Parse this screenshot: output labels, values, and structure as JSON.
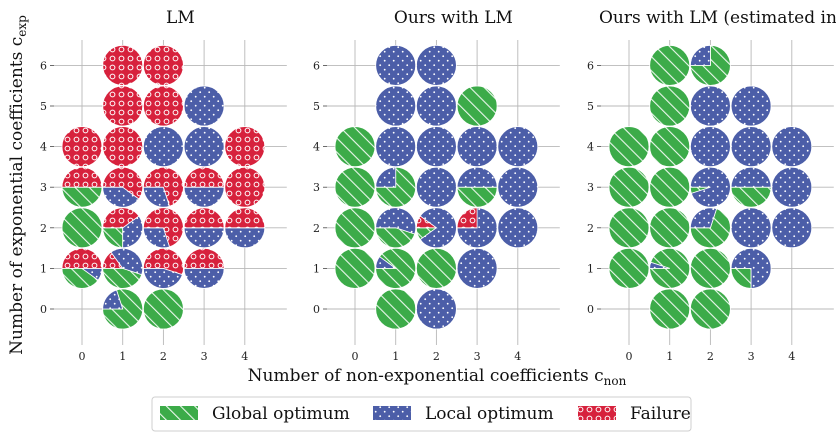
{
  "colors": {
    "global": "#3cab49",
    "local": "#4c5ea8",
    "failure": "#d7213c",
    "grid": "#b8b8b8"
  },
  "axes": {
    "xlabel": "Number of non-exponential coefficients c",
    "xlabel_sub": "non",
    "ylabel": "Number of exponential coefficients c",
    "ylabel_sub": "exp"
  },
  "legend": [
    {
      "key": "global",
      "label": "Global optimum"
    },
    {
      "key": "local",
      "label": "Local optimum"
    },
    {
      "key": "failure",
      "label": "Failure"
    }
  ],
  "chart_data": [
    {
      "type": "pie-grid",
      "title": "LM",
      "x_ticks": [
        "0",
        "1",
        "2",
        "3",
        "4"
      ],
      "y_ticks": [
        "0",
        "1",
        "2",
        "3",
        "4",
        "5",
        "6"
      ],
      "cells": [
        {
          "x": 1,
          "y": 0,
          "global": 0.8,
          "local": 0.2,
          "failure": 0.0
        },
        {
          "x": 2,
          "y": 0,
          "global": 1.0,
          "local": 0.0,
          "failure": 0.0
        },
        {
          "x": 0,
          "y": 1,
          "global": 0.4,
          "local": 0.1,
          "failure": 0.5
        },
        {
          "x": 1,
          "y": 1,
          "global": 0.45,
          "local": 0.4,
          "failure": 0.15
        },
        {
          "x": 2,
          "y": 1,
          "global": 0.0,
          "local": 0.45,
          "failure": 0.55
        },
        {
          "x": 3,
          "y": 1,
          "global": 0.0,
          "local": 0.5,
          "failure": 0.5
        },
        {
          "x": 0,
          "y": 2,
          "global": 1.0,
          "local": 0.0,
          "failure": 0.0
        },
        {
          "x": 1,
          "y": 2,
          "global": 0.25,
          "local": 0.35,
          "failure": 0.4
        },
        {
          "x": 2,
          "y": 2,
          "global": 0.0,
          "local": 0.3,
          "failure": 0.7
        },
        {
          "x": 3,
          "y": 2,
          "global": 0.0,
          "local": 0.5,
          "failure": 0.5
        },
        {
          "x": 4,
          "y": 2,
          "global": 0.0,
          "local": 0.5,
          "failure": 0.5
        },
        {
          "x": 0,
          "y": 3,
          "global": 0.5,
          "local": 0.0,
          "failure": 0.5
        },
        {
          "x": 1,
          "y": 3,
          "global": 0.0,
          "local": 0.4,
          "failure": 0.6
        },
        {
          "x": 2,
          "y": 3,
          "global": 0.0,
          "local": 0.3,
          "failure": 0.7
        },
        {
          "x": 3,
          "y": 3,
          "global": 0.0,
          "local": 0.5,
          "failure": 0.5
        },
        {
          "x": 4,
          "y": 3,
          "global": 0.0,
          "local": 0.0,
          "failure": 1.0
        },
        {
          "x": 0,
          "y": 4,
          "global": 0.0,
          "local": 0.0,
          "failure": 1.0
        },
        {
          "x": 1,
          "y": 4,
          "global": 0.0,
          "local": 0.0,
          "failure": 1.0
        },
        {
          "x": 2,
          "y": 4,
          "global": 0.0,
          "local": 1.0,
          "failure": 0.0
        },
        {
          "x": 3,
          "y": 4,
          "global": 0.0,
          "local": 1.0,
          "failure": 0.0
        },
        {
          "x": 4,
          "y": 4,
          "global": 0.0,
          "local": 0.0,
          "failure": 1.0
        },
        {
          "x": 1,
          "y": 5,
          "global": 0.0,
          "local": 0.0,
          "failure": 1.0
        },
        {
          "x": 2,
          "y": 5,
          "global": 0.0,
          "local": 0.0,
          "failure": 1.0
        },
        {
          "x": 3,
          "y": 5,
          "global": 0.0,
          "local": 1.0,
          "failure": 0.0
        },
        {
          "x": 1,
          "y": 6,
          "global": 0.0,
          "local": 0.0,
          "failure": 1.0
        },
        {
          "x": 2,
          "y": 6,
          "global": 0.0,
          "local": 0.0,
          "failure": 1.0
        }
      ]
    },
    {
      "type": "pie-grid",
      "title": "Ours with LM",
      "x_ticks": [
        "0",
        "1",
        "2",
        "3",
        "4"
      ],
      "y_ticks": [
        "0",
        "1",
        "2",
        "3",
        "4",
        "5",
        "6"
      ],
      "cells": [
        {
          "x": 1,
          "y": 0,
          "global": 1.0,
          "local": 0.0,
          "failure": 0.0
        },
        {
          "x": 2,
          "y": 0,
          "global": 0.0,
          "local": 1.0,
          "failure": 0.0
        },
        {
          "x": 0,
          "y": 1,
          "global": 1.0,
          "local": 0.0,
          "failure": 0.0
        },
        {
          "x": 1,
          "y": 1,
          "global": 0.9,
          "local": 0.1,
          "failure": 0.0
        },
        {
          "x": 2,
          "y": 1,
          "global": 1.0,
          "local": 0.0,
          "failure": 0.0
        },
        {
          "x": 3,
          "y": 1,
          "global": 0.0,
          "local": 1.0,
          "failure": 0.0
        },
        {
          "x": 0,
          "y": 2,
          "global": 1.0,
          "local": 0.0,
          "failure": 0.0
        },
        {
          "x": 1,
          "y": 2,
          "global": 0.45,
          "local": 0.55,
          "failure": 0.0
        },
        {
          "x": 2,
          "y": 2,
          "global": 0.1,
          "local": 0.8,
          "failure": 0.1
        },
        {
          "x": 3,
          "y": 2,
          "global": 0.0,
          "local": 0.75,
          "failure": 0.25
        },
        {
          "x": 4,
          "y": 2,
          "global": 0.0,
          "local": 1.0,
          "failure": 0.0
        },
        {
          "x": 0,
          "y": 3,
          "global": 1.0,
          "local": 0.0,
          "failure": 0.0
        },
        {
          "x": 1,
          "y": 3,
          "global": 0.75,
          "local": 0.25,
          "failure": 0.0
        },
        {
          "x": 2,
          "y": 3,
          "global": 0.0,
          "local": 1.0,
          "failure": 0.0
        },
        {
          "x": 3,
          "y": 3,
          "global": 0.5,
          "local": 0.5,
          "failure": 0.0
        },
        {
          "x": 4,
          "y": 3,
          "global": 0.0,
          "local": 1.0,
          "failure": 0.0
        },
        {
          "x": 0,
          "y": 4,
          "global": 1.0,
          "local": 0.0,
          "failure": 0.0
        },
        {
          "x": 1,
          "y": 4,
          "global": 0.0,
          "local": 1.0,
          "failure": 0.0
        },
        {
          "x": 2,
          "y": 4,
          "global": 0.0,
          "local": 1.0,
          "failure": 0.0
        },
        {
          "x": 3,
          "y": 4,
          "global": 0.0,
          "local": 1.0,
          "failure": 0.0
        },
        {
          "x": 4,
          "y": 4,
          "global": 0.0,
          "local": 1.0,
          "failure": 0.0
        },
        {
          "x": 1,
          "y": 5,
          "global": 0.0,
          "local": 1.0,
          "failure": 0.0
        },
        {
          "x": 2,
          "y": 5,
          "global": 0.0,
          "local": 1.0,
          "failure": 0.0
        },
        {
          "x": 3,
          "y": 5,
          "global": 1.0,
          "local": 0.0,
          "failure": 0.0
        },
        {
          "x": 1,
          "y": 6,
          "global": 0.0,
          "local": 1.0,
          "failure": 0.0
        },
        {
          "x": 2,
          "y": 6,
          "global": 0.0,
          "local": 1.0,
          "failure": 0.0
        }
      ]
    },
    {
      "type": "pie-grid",
      "title": "Ours with LM (estimated init)",
      "x_ticks": [
        "0",
        "1",
        "2",
        "3",
        "4"
      ],
      "y_ticks": [
        "0",
        "1",
        "2",
        "3",
        "4",
        "5",
        "6"
      ],
      "cells": [
        {
          "x": 1,
          "y": 0,
          "global": 1.0,
          "local": 0.0,
          "failure": 0.0
        },
        {
          "x": 2,
          "y": 0,
          "global": 1.0,
          "local": 0.0,
          "failure": 0.0
        },
        {
          "x": 0,
          "y": 1,
          "global": 1.0,
          "local": 0.0,
          "failure": 0.0
        },
        {
          "x": 1,
          "y": 1,
          "global": 0.95,
          "local": 0.05,
          "failure": 0.0
        },
        {
          "x": 2,
          "y": 1,
          "global": 1.0,
          "local": 0.0,
          "failure": 0.0
        },
        {
          "x": 3,
          "y": 1,
          "global": 0.25,
          "local": 0.75,
          "failure": 0.0
        },
        {
          "x": 0,
          "y": 2,
          "global": 1.0,
          "local": 0.0,
          "failure": 0.0
        },
        {
          "x": 1,
          "y": 2,
          "global": 1.0,
          "local": 0.0,
          "failure": 0.0
        },
        {
          "x": 2,
          "y": 2,
          "global": 0.7,
          "local": 0.3,
          "failure": 0.0
        },
        {
          "x": 3,
          "y": 2,
          "global": 0.0,
          "local": 1.0,
          "failure": 0.0
        },
        {
          "x": 4,
          "y": 2,
          "global": 0.0,
          "local": 1.0,
          "failure": 0.0
        },
        {
          "x": 0,
          "y": 3,
          "global": 1.0,
          "local": 0.0,
          "failure": 0.0
        },
        {
          "x": 1,
          "y": 3,
          "global": 1.0,
          "local": 0.0,
          "failure": 0.0
        },
        {
          "x": 2,
          "y": 3,
          "global": 0.05,
          "local": 0.95,
          "failure": 0.0
        },
        {
          "x": 3,
          "y": 3,
          "global": 0.5,
          "local": 0.5,
          "failure": 0.0
        },
        {
          "x": 4,
          "y": 3,
          "global": 0.0,
          "local": 1.0,
          "failure": 0.0
        },
        {
          "x": 0,
          "y": 4,
          "global": 1.0,
          "local": 0.0,
          "failure": 0.0
        },
        {
          "x": 1,
          "y": 4,
          "global": 1.0,
          "local": 0.0,
          "failure": 0.0
        },
        {
          "x": 2,
          "y": 4,
          "global": 0.0,
          "local": 1.0,
          "failure": 0.0
        },
        {
          "x": 3,
          "y": 4,
          "global": 0.0,
          "local": 1.0,
          "failure": 0.0
        },
        {
          "x": 4,
          "y": 4,
          "global": 0.0,
          "local": 1.0,
          "failure": 0.0
        },
        {
          "x": 1,
          "y": 5,
          "global": 1.0,
          "local": 0.0,
          "failure": 0.0
        },
        {
          "x": 2,
          "y": 5,
          "global": 0.0,
          "local": 1.0,
          "failure": 0.0
        },
        {
          "x": 3,
          "y": 5,
          "global": 0.0,
          "local": 1.0,
          "failure": 0.0
        },
        {
          "x": 1,
          "y": 6,
          "global": 1.0,
          "local": 0.0,
          "failure": 0.0
        },
        {
          "x": 2,
          "y": 6,
          "global": 0.75,
          "local": 0.25,
          "failure": 0.0
        }
      ]
    }
  ]
}
